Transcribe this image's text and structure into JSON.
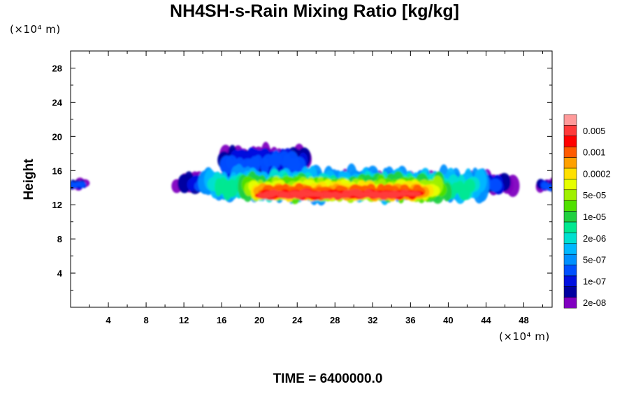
{
  "chart_data": {
    "type": "heatmap",
    "title": "NH4SH-s-Rain Mixing Ratio [kg/kg]",
    "ylabel": "Height",
    "xlabel": "",
    "x_unit": "(×10⁴ m)",
    "y_unit": "(×10⁴ m)",
    "x_ticks": [
      4,
      8,
      12,
      16,
      20,
      24,
      28,
      32,
      36,
      40,
      44,
      48
    ],
    "y_ticks": [
      4,
      8,
      12,
      16,
      20,
      24,
      28
    ],
    "xlim": [
      0,
      51
    ],
    "ylim": [
      0,
      30
    ],
    "grid": false,
    "colorbar": {
      "position": "right",
      "labels": [
        "0.005",
        "0.001",
        "0.0002",
        "5e-05",
        "1e-05",
        "2e-06",
        "5e-07",
        "1e-07",
        "2e-08"
      ],
      "colors": [
        "#ff9a9a",
        "#ff3a3a",
        "#ff0000",
        "#ff5a00",
        "#ffa000",
        "#ffe000",
        "#e6ff00",
        "#a0f000",
        "#50e000",
        "#20d040",
        "#00e890",
        "#00e0d0",
        "#00b8ff",
        "#0090ff",
        "#0050ff",
        "#0010e0",
        "#0000a0",
        "#8000c0"
      ]
    },
    "field_regions": [
      {
        "level": 0,
        "x": [
          11.2,
          47
        ],
        "y": [
          13.3,
          15.8
        ]
      },
      {
        "level": 0,
        "x": [
          16,
          25
        ],
        "y": [
          15.5,
          19.0
        ]
      },
      {
        "level": 0,
        "x": [
          0,
          1.5
        ],
        "y": [
          13.8,
          15.0
        ]
      },
      {
        "level": 0,
        "x": [
          49.8,
          51
        ],
        "y": [
          13.6,
          15.0
        ]
      },
      {
        "level": 1,
        "x": [
          14,
          44
        ],
        "y": [
          12.5,
          16.3
        ]
      },
      {
        "level": 2,
        "x": [
          18,
          40
        ],
        "y": [
          12.5,
          15.5
        ]
      },
      {
        "level": 3,
        "x": [
          19.5,
          38
        ],
        "y": [
          12.6,
          14.6
        ]
      },
      {
        "level": 4,
        "x": [
          20,
          37
        ],
        "y": [
          12.7,
          13.8
        ]
      }
    ]
  },
  "footer": {
    "time_label": "TIME = 6400000.0"
  }
}
